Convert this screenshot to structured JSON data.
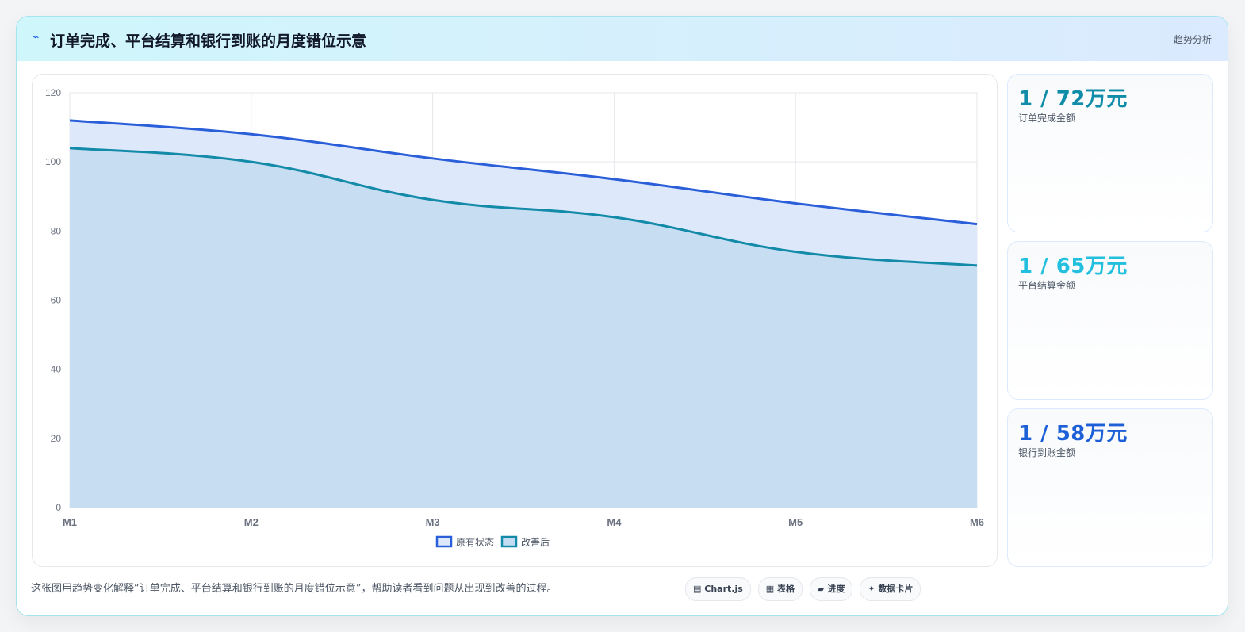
{
  "header": {
    "icon": "bolt-icon",
    "title": "订单完成、平台结算和银行到账的月度错位示意",
    "tag": "趋势分析"
  },
  "stats": [
    {
      "value": "1 / 72万元",
      "label": "订单完成金额",
      "color": "#0e8ca8"
    },
    {
      "value": "1 / 65万元",
      "label": "平台结算金额",
      "color": "#22c0de"
    },
    {
      "value": "1 / 58万元",
      "label": "银行到账金额",
      "color": "#1d5fd6"
    }
  ],
  "caption": "这张图用趋势变化解释“订单完成、平台结算和银行到账的月度错位示意”，帮助读者看到问题从出现到改善的过程。",
  "chips": [
    {
      "icon": "chart-icon",
      "glyph": "▤",
      "label": "Chart.js"
    },
    {
      "icon": "table-icon",
      "glyph": "▦",
      "label": "表格"
    },
    {
      "icon": "progress-icon",
      "glyph": "▰",
      "label": "进度"
    },
    {
      "icon": "sparkle-icon",
      "glyph": "✦",
      "label": "数据卡片"
    }
  ],
  "chart_data": {
    "type": "area",
    "categories": [
      "M1",
      "M2",
      "M3",
      "M4",
      "M5",
      "M6"
    ],
    "ylim": [
      0,
      120
    ],
    "yticks": [
      0,
      20,
      40,
      60,
      80,
      100,
      120
    ],
    "grid": true,
    "legend_position": "bottom",
    "series": [
      {
        "name": "原有状态",
        "values": [
          112,
          108,
          101,
          95,
          88,
          82
        ],
        "color": "#2b5fd9",
        "fill": "#dde8fb"
      },
      {
        "name": "改善后",
        "values": [
          104,
          100,
          89,
          84,
          74,
          70
        ],
        "color": "#138aa8",
        "fill": "#c4dcf1"
      }
    ]
  }
}
